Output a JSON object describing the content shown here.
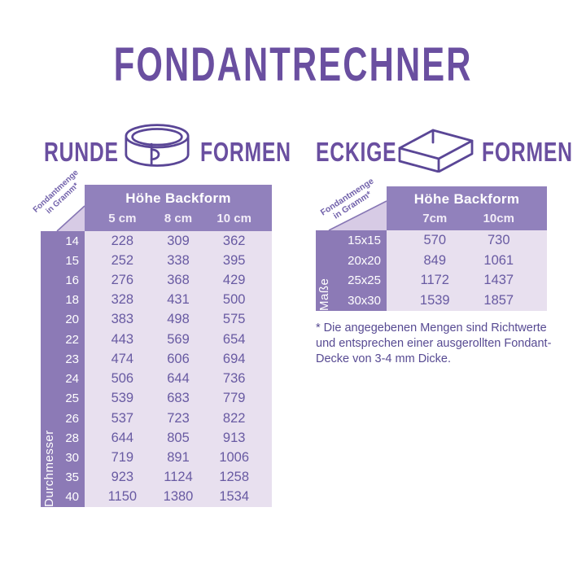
{
  "title": "FONDANTRECHNER",
  "sections": {
    "round": {
      "label_left": "RUNDE",
      "label_right": "FORMEN",
      "icon": "round-cake-ring-icon"
    },
    "square": {
      "label_left": "ECKIGE",
      "label_right": "FORMEN",
      "icon": "square-baking-frame-icon"
    }
  },
  "chart_data": [
    {
      "type": "table",
      "name": "runde-formen",
      "corner_line1": "Fondantmenge",
      "corner_line2": "in Gramm*",
      "header": "Höhe Backform",
      "columns": [
        "5 cm",
        "8 cm",
        "10 cm"
      ],
      "row_axis": "Durchmesser",
      "rows": [
        {
          "label": "14",
          "values": [
            "228",
            "309",
            "362"
          ]
        },
        {
          "label": "15",
          "values": [
            "252",
            "338",
            "395"
          ]
        },
        {
          "label": "16",
          "values": [
            "276",
            "368",
            "429"
          ]
        },
        {
          "label": "18",
          "values": [
            "328",
            "431",
            "500"
          ]
        },
        {
          "label": "20",
          "values": [
            "383",
            "498",
            "575"
          ]
        },
        {
          "label": "22",
          "values": [
            "443",
            "569",
            "654"
          ]
        },
        {
          "label": "23",
          "values": [
            "474",
            "606",
            "694"
          ]
        },
        {
          "label": "24",
          "values": [
            "506",
            "644",
            "736"
          ]
        },
        {
          "label": "25",
          "values": [
            "539",
            "683",
            "779"
          ]
        },
        {
          "label": "26",
          "values": [
            "537",
            "723",
            "822"
          ]
        },
        {
          "label": "28",
          "values": [
            "644",
            "805",
            "913"
          ]
        },
        {
          "label": "30",
          "values": [
            "719",
            "891",
            "1006"
          ]
        },
        {
          "label": "35",
          "values": [
            "923",
            "1124",
            "1258"
          ]
        },
        {
          "label": "40",
          "values": [
            "1150",
            "1380",
            "1534"
          ]
        }
      ]
    },
    {
      "type": "table",
      "name": "eckige-formen",
      "corner_line1": "Fondantmenge",
      "corner_line2": "in Gramm*",
      "header": "Höhe Backform",
      "columns": [
        "7cm",
        "10cm"
      ],
      "row_axis": "Maße",
      "rows": [
        {
          "label": "15x15",
          "values": [
            "570",
            "730"
          ]
        },
        {
          "label": "20x20",
          "values": [
            "849",
            "1061"
          ]
        },
        {
          "label": "25x25",
          "values": [
            "1172",
            "1437"
          ]
        },
        {
          "label": "30x30",
          "values": [
            "1539",
            "1857"
          ]
        }
      ]
    }
  ],
  "footnote": "* Die angegebenen Mengen sind Richtwerte und entsprechen einer ausgerollten Fondant-Decke von 3-4 mm Dicke.",
  "colors": {
    "accent": "#6a4fa0",
    "table_header_bg": "#9181bc",
    "label_col_bg": "#8c7ab6",
    "cell_bg": "#e8e0ef",
    "corner_triangle": "#d7cbe5",
    "value_text": "#685aa2",
    "footnote_text": "#574a92",
    "icon_stroke": "#5a4696"
  }
}
